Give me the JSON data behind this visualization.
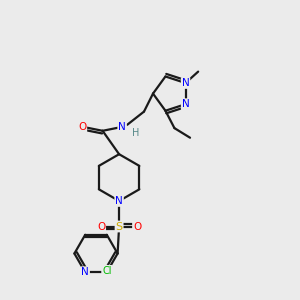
{
  "background_color": "#ebebeb",
  "bond_color": "#1a1a1a",
  "atom_colors": {
    "N": "#0000ff",
    "O": "#ff0000",
    "S": "#ccaa00",
    "Cl": "#00bb00",
    "H": "#558888",
    "C": "#1a1a1a"
  },
  "lw": 1.6,
  "fontsize": 7.5,
  "xlim": [
    0,
    10
  ],
  "ylim": [
    0,
    10
  ]
}
